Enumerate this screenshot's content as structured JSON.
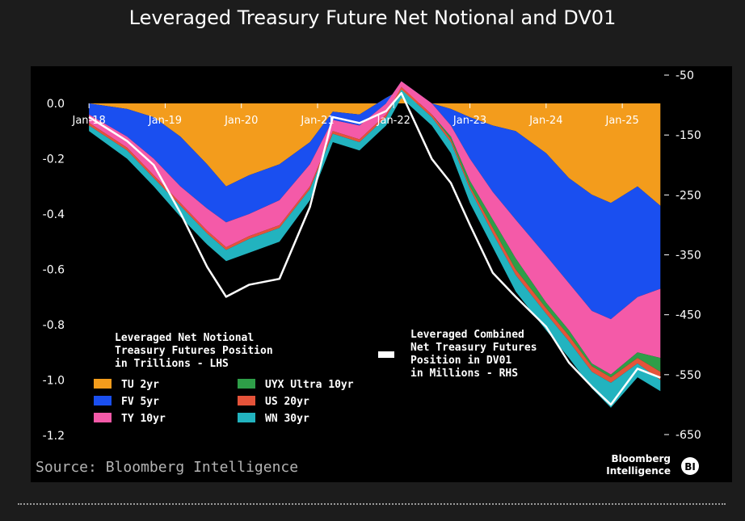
{
  "title": "Leveraged Treasury Future Net Notional and DV01",
  "chart_data": {
    "type": "area",
    "title": "Leveraged Treasury Future Net Notional and DV01",
    "x_ticks": [
      "Jan-18",
      "Jan-19",
      "Jan-20",
      "Jan-21",
      "Jan-22",
      "Jan-23",
      "Jan-24",
      "Jan-25"
    ],
    "left_axis": {
      "label": "Leveraged Net Notional Treasury Futures Position in Trillions - LHS",
      "range": [
        -1.2,
        0.0
      ],
      "ticks": [
        "0.0",
        "-0.2",
        "-0.4",
        "-0.6",
        "-0.8",
        "-1.0",
        "-1.2"
      ]
    },
    "right_axis": {
      "label": "Leveraged Combined Net Treasury Futures Position in DV01 in Millions - RHS",
      "range": [
        -650,
        -50
      ],
      "ticks": [
        "-50",
        "-150",
        "-250",
        "-350",
        "-450",
        "-550",
        "-650"
      ]
    },
    "x": [
      2018.0,
      2018.5,
      2018.85,
      2019.2,
      2019.55,
      2019.8,
      2020.1,
      2020.5,
      2020.9,
      2021.2,
      2021.55,
      2021.9,
      2022.1,
      2022.5,
      2022.75,
      2023.0,
      2023.3,
      2023.6,
      2024.0,
      2024.3,
      2024.6,
      2024.85,
      2025.2,
      2025.5
    ],
    "series": [
      {
        "name": "TU 2yr",
        "color": "#f39c1c",
        "values": [
          0.0,
          -0.02,
          -0.05,
          -0.12,
          -0.22,
          -0.3,
          -0.26,
          -0.22,
          -0.14,
          -0.03,
          -0.04,
          0.02,
          0.05,
          0.0,
          -0.02,
          -0.05,
          -0.08,
          -0.1,
          -0.18,
          -0.27,
          -0.33,
          -0.36,
          -0.3,
          -0.37
        ]
      },
      {
        "name": "FV 5yr",
        "color": "#1a4ff0",
        "values": [
          -0.04,
          -0.12,
          -0.2,
          -0.3,
          -0.38,
          -0.43,
          -0.4,
          -0.35,
          -0.22,
          -0.06,
          -0.08,
          0.0,
          0.08,
          0.0,
          -0.08,
          -0.2,
          -0.32,
          -0.42,
          -0.55,
          -0.65,
          -0.75,
          -0.78,
          -0.7,
          -0.67
        ]
      },
      {
        "name": "TY 10yr",
        "color": "#f45aa8",
        "values": [
          -0.07,
          -0.16,
          -0.26,
          -0.36,
          -0.46,
          -0.52,
          -0.48,
          -0.44,
          -0.3,
          -0.1,
          -0.13,
          -0.04,
          0.06,
          -0.04,
          -0.12,
          -0.28,
          -0.42,
          -0.56,
          -0.72,
          -0.82,
          -0.94,
          -0.98,
          -0.9,
          -0.92
        ]
      },
      {
        "name": "UYX Ultra 10yr",
        "color": "#2e9e48",
        "values": [
          -0.07,
          -0.16,
          -0.26,
          -0.36,
          -0.46,
          -0.52,
          -0.48,
          -0.44,
          -0.3,
          -0.1,
          -0.13,
          -0.04,
          0.06,
          -0.04,
          -0.13,
          -0.3,
          -0.45,
          -0.6,
          -0.74,
          -0.84,
          -0.95,
          -0.99,
          -0.92,
          -0.97
        ]
      },
      {
        "name": "US 20yr",
        "color": "#e5533a",
        "values": [
          -0.08,
          -0.17,
          -0.27,
          -0.37,
          -0.47,
          -0.53,
          -0.49,
          -0.45,
          -0.31,
          -0.11,
          -0.14,
          -0.05,
          0.05,
          -0.05,
          -0.14,
          -0.31,
          -0.47,
          -0.62,
          -0.76,
          -0.86,
          -0.97,
          -1.01,
          -0.94,
          -1.0
        ]
      },
      {
        "name": "WN 30yr",
        "color": "#22b3bf",
        "values": [
          -0.1,
          -0.2,
          -0.3,
          -0.41,
          -0.51,
          -0.57,
          -0.54,
          -0.5,
          -0.35,
          -0.14,
          -0.17,
          -0.08,
          0.02,
          -0.08,
          -0.18,
          -0.36,
          -0.52,
          -0.68,
          -0.82,
          -0.92,
          -1.03,
          -1.1,
          -0.99,
          -1.04
        ]
      }
    ],
    "dv01_line": {
      "name": "Leveraged Combined Net Treasury Futures Position in DV01 in Millions - RHS",
      "color": "#ffffff",
      "values": [
        -120,
        -160,
        -200,
        -280,
        -370,
        -420,
        -400,
        -390,
        -270,
        -120,
        -130,
        -110,
        -80,
        -190,
        -230,
        -300,
        -380,
        -420,
        -470,
        -530,
        -570,
        -600,
        -540,
        -555
      ]
    },
    "legend_title": "Leveraged Net Notional Treasury Futures Position in Trillions - LHS",
    "source": "Source: Bloomberg Intelligence",
    "logo_text": "Bloomberg Intelligence",
    "logo_badge": "BI"
  }
}
